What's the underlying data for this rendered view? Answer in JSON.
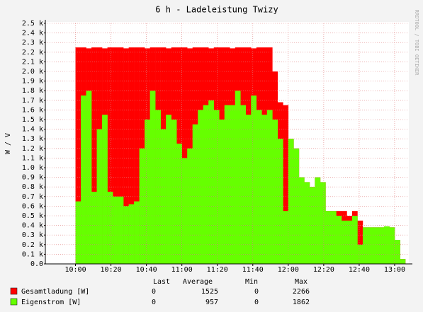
{
  "chart_data": {
    "type": "area",
    "title": "6 h - Ladeleistung Twizy",
    "ylabel": "W / V",
    "watermark": "RRDTOOL / TOBI OETIKER",
    "x": [
      "9:57",
      "10:00",
      "10:03",
      "10:06",
      "10:09",
      "10:12",
      "10:15",
      "10:18",
      "10:21",
      "10:24",
      "10:27",
      "10:30",
      "10:33",
      "10:36",
      "10:39",
      "10:42",
      "10:45",
      "10:48",
      "10:51",
      "10:54",
      "10:57",
      "11:00",
      "11:03",
      "11:06",
      "11:09",
      "11:12",
      "11:15",
      "11:18",
      "11:21",
      "11:24",
      "11:27",
      "11:30",
      "11:33",
      "11:36",
      "11:39",
      "11:42",
      "11:45",
      "11:48",
      "11:51",
      "11:54",
      "11:57",
      "12:00",
      "12:03",
      "12:06",
      "12:09",
      "12:12",
      "12:15",
      "12:18",
      "12:21",
      "12:24",
      "12:27",
      "12:30",
      "12:33",
      "12:36",
      "12:39",
      "12:42",
      "12:45",
      "12:48",
      "12:51",
      "12:54",
      "12:57",
      "13:00",
      "13:03"
    ],
    "xlim": [
      "9:43",
      "13:08"
    ],
    "xticks": [
      "10:00",
      "10:20",
      "10:40",
      "11:00",
      "11:20",
      "11:40",
      "12:00",
      "12:20",
      "12:40",
      "13:00"
    ],
    "ylim": [
      0,
      2500
    ],
    "yticks": [
      {
        "value": 0,
        "label": "0.0"
      },
      {
        "value": 100,
        "label": "0.1 k"
      },
      {
        "value": 200,
        "label": "0.2 k"
      },
      {
        "value": 300,
        "label": "0.3 k"
      },
      {
        "value": 400,
        "label": "0.4 k"
      },
      {
        "value": 500,
        "label": "0.5 k"
      },
      {
        "value": 600,
        "label": "0.6 k"
      },
      {
        "value": 700,
        "label": "0.7 k"
      },
      {
        "value": 800,
        "label": "0.8 k"
      },
      {
        "value": 900,
        "label": "0.9 k"
      },
      {
        "value": 1000,
        "label": "1.0 k"
      },
      {
        "value": 1100,
        "label": "1.1 k"
      },
      {
        "value": 1200,
        "label": "1.2 k"
      },
      {
        "value": 1300,
        "label": "1.3 k"
      },
      {
        "value": 1400,
        "label": "1.4 k"
      },
      {
        "value": 1500,
        "label": "1.5 k"
      },
      {
        "value": 1600,
        "label": "1.6 k"
      },
      {
        "value": 1700,
        "label": "1.7 k"
      },
      {
        "value": 1800,
        "label": "1.8 k"
      },
      {
        "value": 1900,
        "label": "1.9 k"
      },
      {
        "value": 2000,
        "label": "2.0 k"
      },
      {
        "value": 2100,
        "label": "2.1 k"
      },
      {
        "value": 2200,
        "label": "2.2 k"
      },
      {
        "value": 2300,
        "label": "2.3 k"
      },
      {
        "value": 2400,
        "label": "2.4 k"
      },
      {
        "value": 2500,
        "label": "2.5 k"
      }
    ],
    "grid": true,
    "legend_headers": [
      "Last",
      "Average",
      "Min",
      "Max"
    ],
    "series": [
      {
        "name": "Gesamtladung [W]",
        "color": "#ff0000",
        "last": 0,
        "average": 1525,
        "min": 0,
        "max": 2266,
        "values": [
          0,
          2250,
          2250,
          2240,
          2250,
          2250,
          2240,
          2250,
          2250,
          2250,
          2240,
          2250,
          2250,
          2250,
          2240,
          2250,
          2250,
          2250,
          2240,
          2250,
          2250,
          2250,
          2240,
          2250,
          2250,
          2250,
          2240,
          2250,
          2250,
          2250,
          2240,
          2250,
          2250,
          2250,
          2240,
          2250,
          2250,
          2250,
          2000,
          1680,
          1650,
          1300,
          1200,
          900,
          850,
          800,
          900,
          850,
          550,
          550,
          550,
          550,
          500,
          550,
          450,
          380,
          380,
          380,
          380,
          390,
          380,
          250,
          50
        ]
      },
      {
        "name": "Eigenstrom [W]",
        "color": "#66ff00",
        "last": 0,
        "average": 957,
        "min": 0,
        "max": 1862,
        "values": [
          0,
          650,
          1750,
          1800,
          750,
          1400,
          1550,
          750,
          700,
          700,
          600,
          620,
          650,
          1200,
          1500,
          1800,
          1600,
          1400,
          1550,
          1500,
          1250,
          1100,
          1200,
          1450,
          1600,
          1650,
          1700,
          1600,
          1500,
          1650,
          1650,
          1800,
          1650,
          1550,
          1750,
          1600,
          1550,
          1600,
          1500,
          1300,
          550,
          1300,
          1200,
          900,
          850,
          800,
          900,
          850,
          550,
          550,
          500,
          450,
          450,
          500,
          200,
          380,
          380,
          380,
          380,
          390,
          380,
          250,
          50
        ]
      }
    ]
  }
}
